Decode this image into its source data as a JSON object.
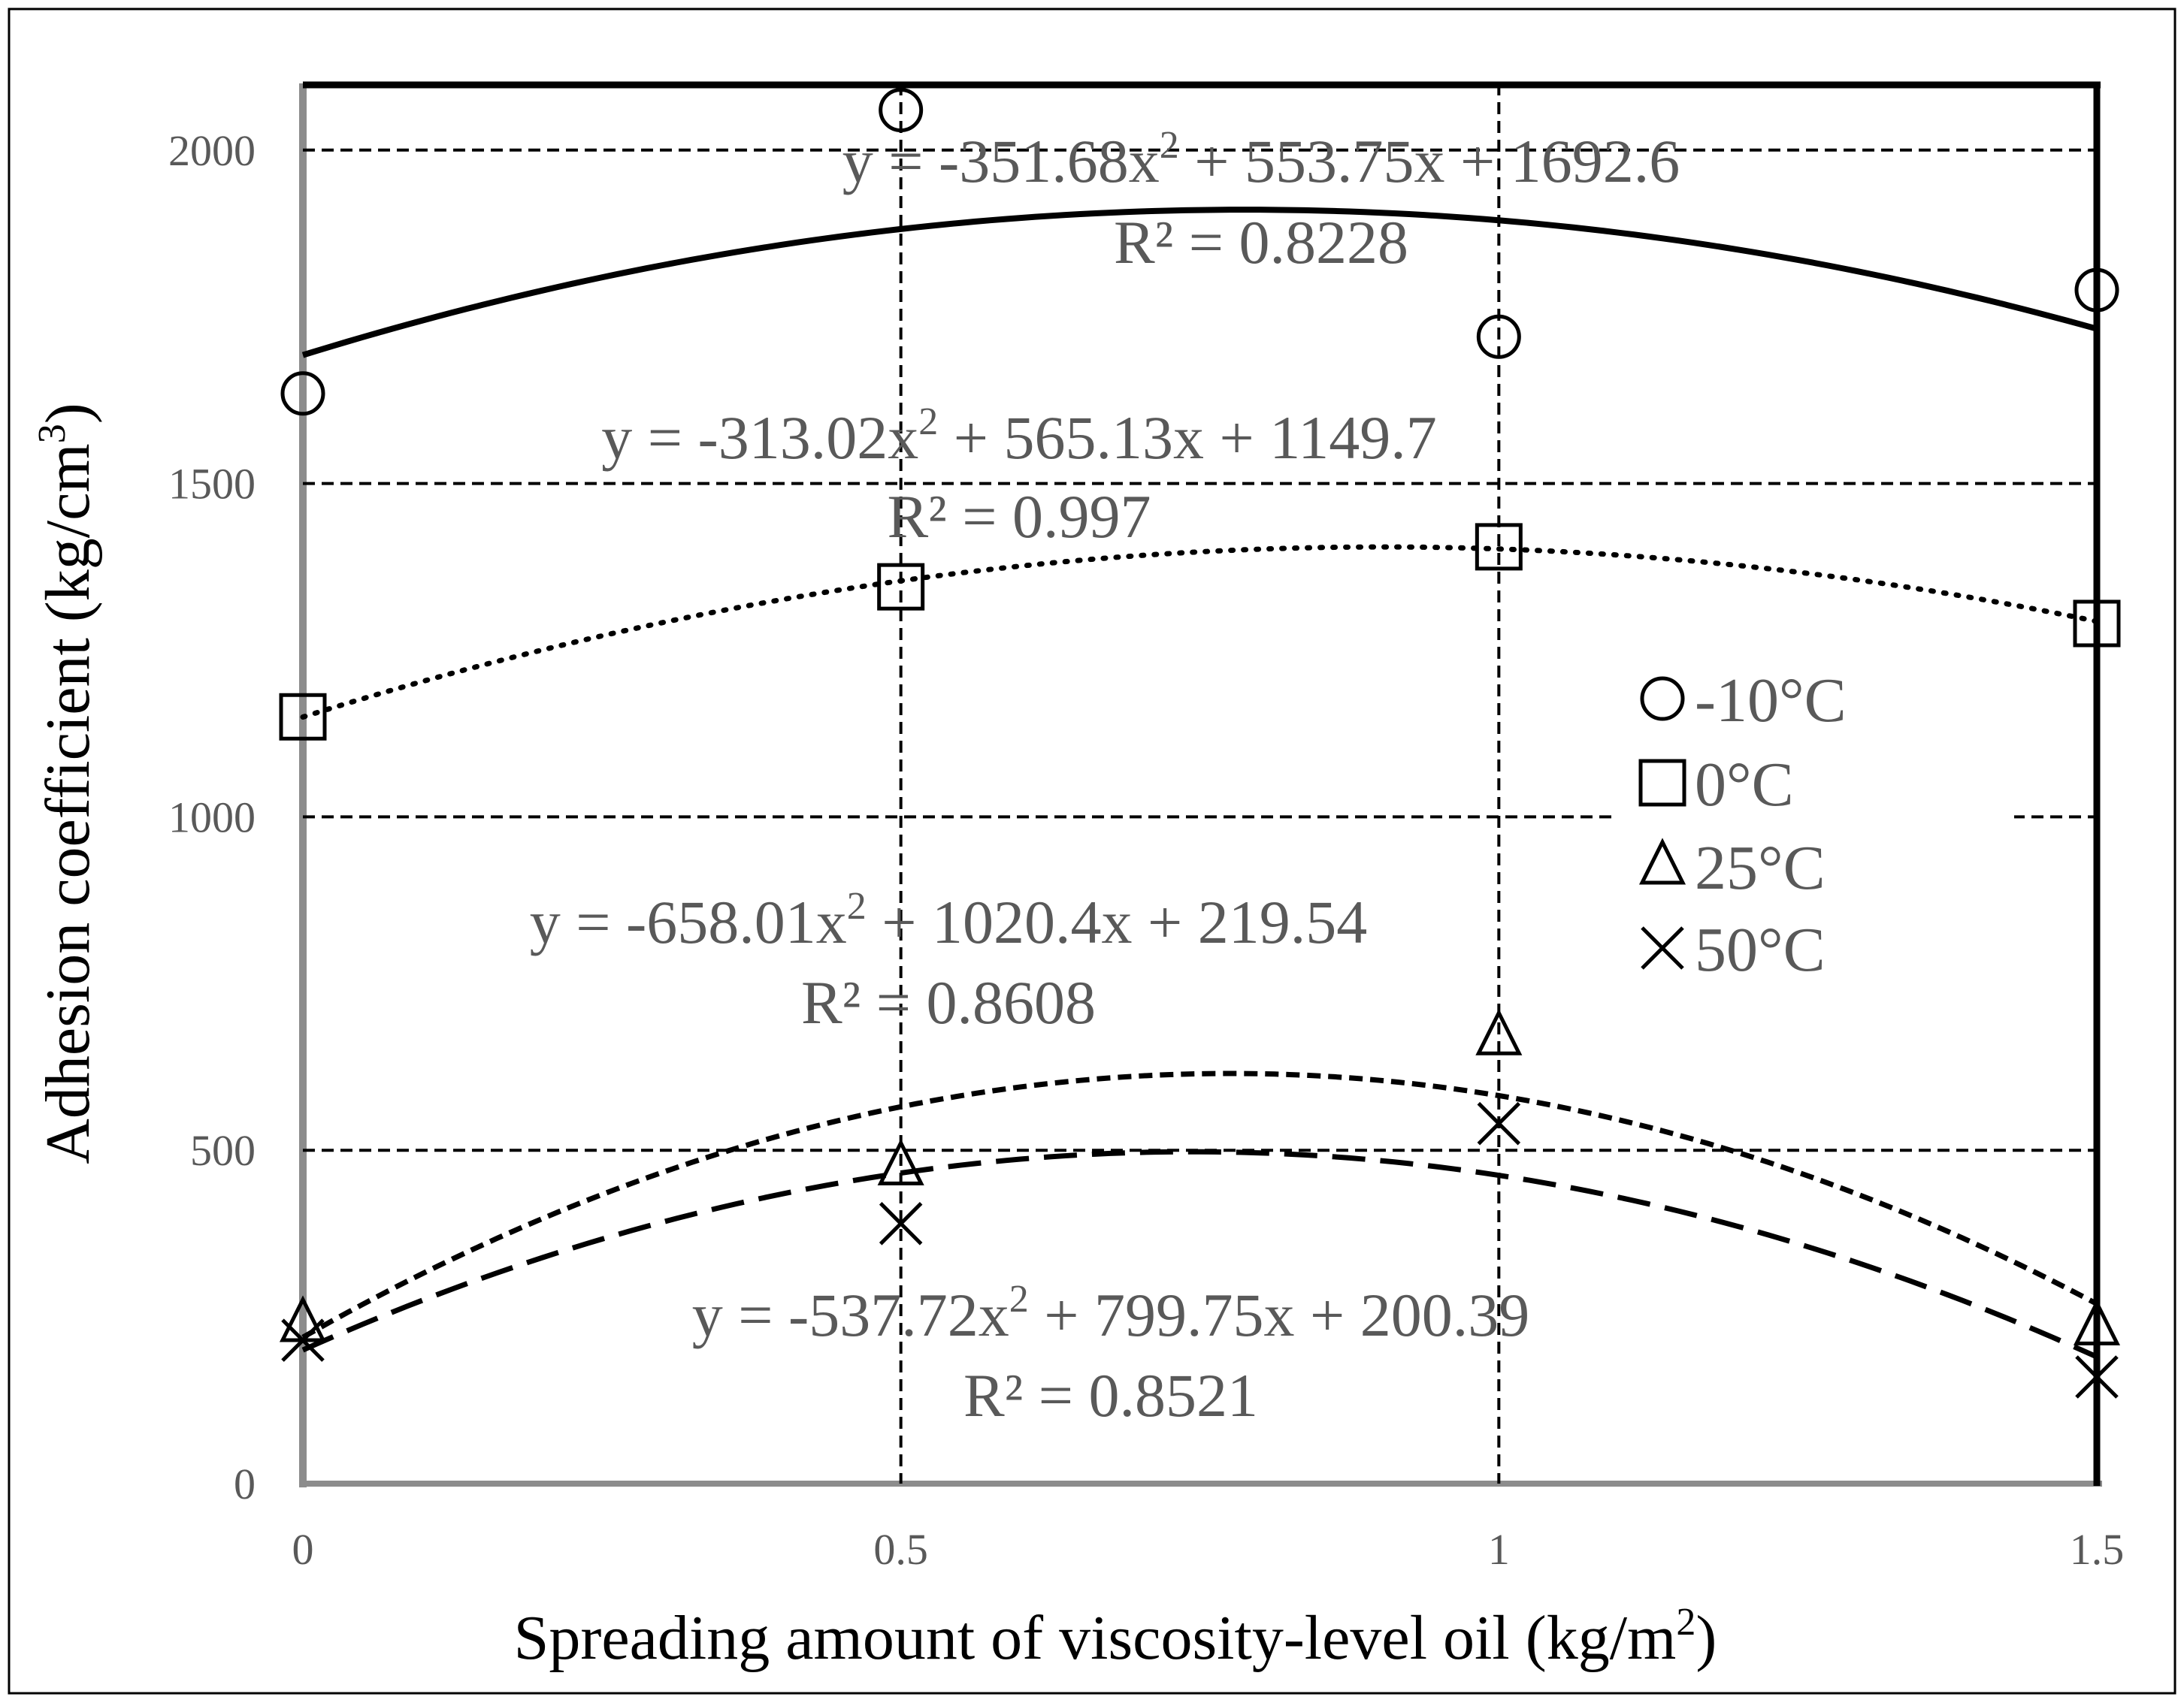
{
  "chart_data": {
    "type": "scatter",
    "xlabel": "Spreading amount of viscosity-level oil (kg/m",
    "xlabel_sup": "2",
    "xlabel_end": ")",
    "ylabel": "Adhesion coefficient  (kg/cm",
    "ylabel_sup": "3",
    "ylabel_end": ")",
    "xlim": [
      0,
      1.5
    ],
    "ylim": [
      0,
      2100
    ],
    "x_ticks": [
      0,
      0.5,
      1,
      1.5
    ],
    "x_tick_labels": [
      "0",
      "0.5",
      "1",
      "1.5"
    ],
    "y_ticks": [
      0,
      500,
      1000,
      1500,
      2000
    ],
    "y_tick_labels": [
      "0",
      "500",
      "1000",
      "1500",
      "2000"
    ],
    "x_gridlines": [
      0.5,
      1
    ],
    "y_gridlines": [
      500,
      1000,
      1500,
      2000
    ],
    "legend_position": "right",
    "series": [
      {
        "name": "-10°C",
        "marker": "circle",
        "x": [
          0,
          0.5,
          1,
          1.5
        ],
        "y": [
          1635,
          2060,
          1720,
          1790
        ],
        "trend": {
          "a": -351.68,
          "b": 553.75,
          "c": 1692.6,
          "style": "solid",
          "equation_prefix": "y = -351.68x",
          "equation_sup": "2",
          "equation_suffix": " + 553.75x + 1692.6",
          "r2": "R² = 0.8228"
        }
      },
      {
        "name": "0°C",
        "marker": "square",
        "x": [
          0,
          0.5,
          1,
          1.5
        ],
        "y": [
          1150,
          1345,
          1405,
          1290
        ],
        "trend": {
          "a": -313.02,
          "b": 565.13,
          "c": 1149.7,
          "style": "dotted",
          "equation_prefix": "y = -313.02x",
          "equation_sup": "2",
          "equation_suffix": " + 565.13x + 1149.7",
          "r2": "R² = 0.997"
        }
      },
      {
        "name": "25°C",
        "marker": "triangle",
        "x": [
          0,
          0.5,
          1,
          1.5
        ],
        "y": [
          240,
          475,
          670,
          235
        ],
        "trend": {
          "a": -658.01,
          "b": 1020.4,
          "c": 219.54,
          "style": "short-dash",
          "equation_prefix": "y = -658.01x",
          "equation_sup": "2",
          "equation_suffix": " + 1020.4x + 219.54",
          "r2": "R² = 0.8608"
        }
      },
      {
        "name": "50°C",
        "marker": "cross",
        "x": [
          0,
          0.5,
          1,
          1.5
        ],
        "y": [
          215,
          390,
          540,
          160
        ],
        "trend": {
          "a": -537.72,
          "b": 799.75,
          "c": 200.39,
          "style": "long-dash",
          "equation_prefix": "y = -537.72x",
          "equation_sup": "2",
          "equation_suffix": " + 799.75x + 200.39",
          "r2": "R² = 0.8521"
        }
      }
    ]
  }
}
